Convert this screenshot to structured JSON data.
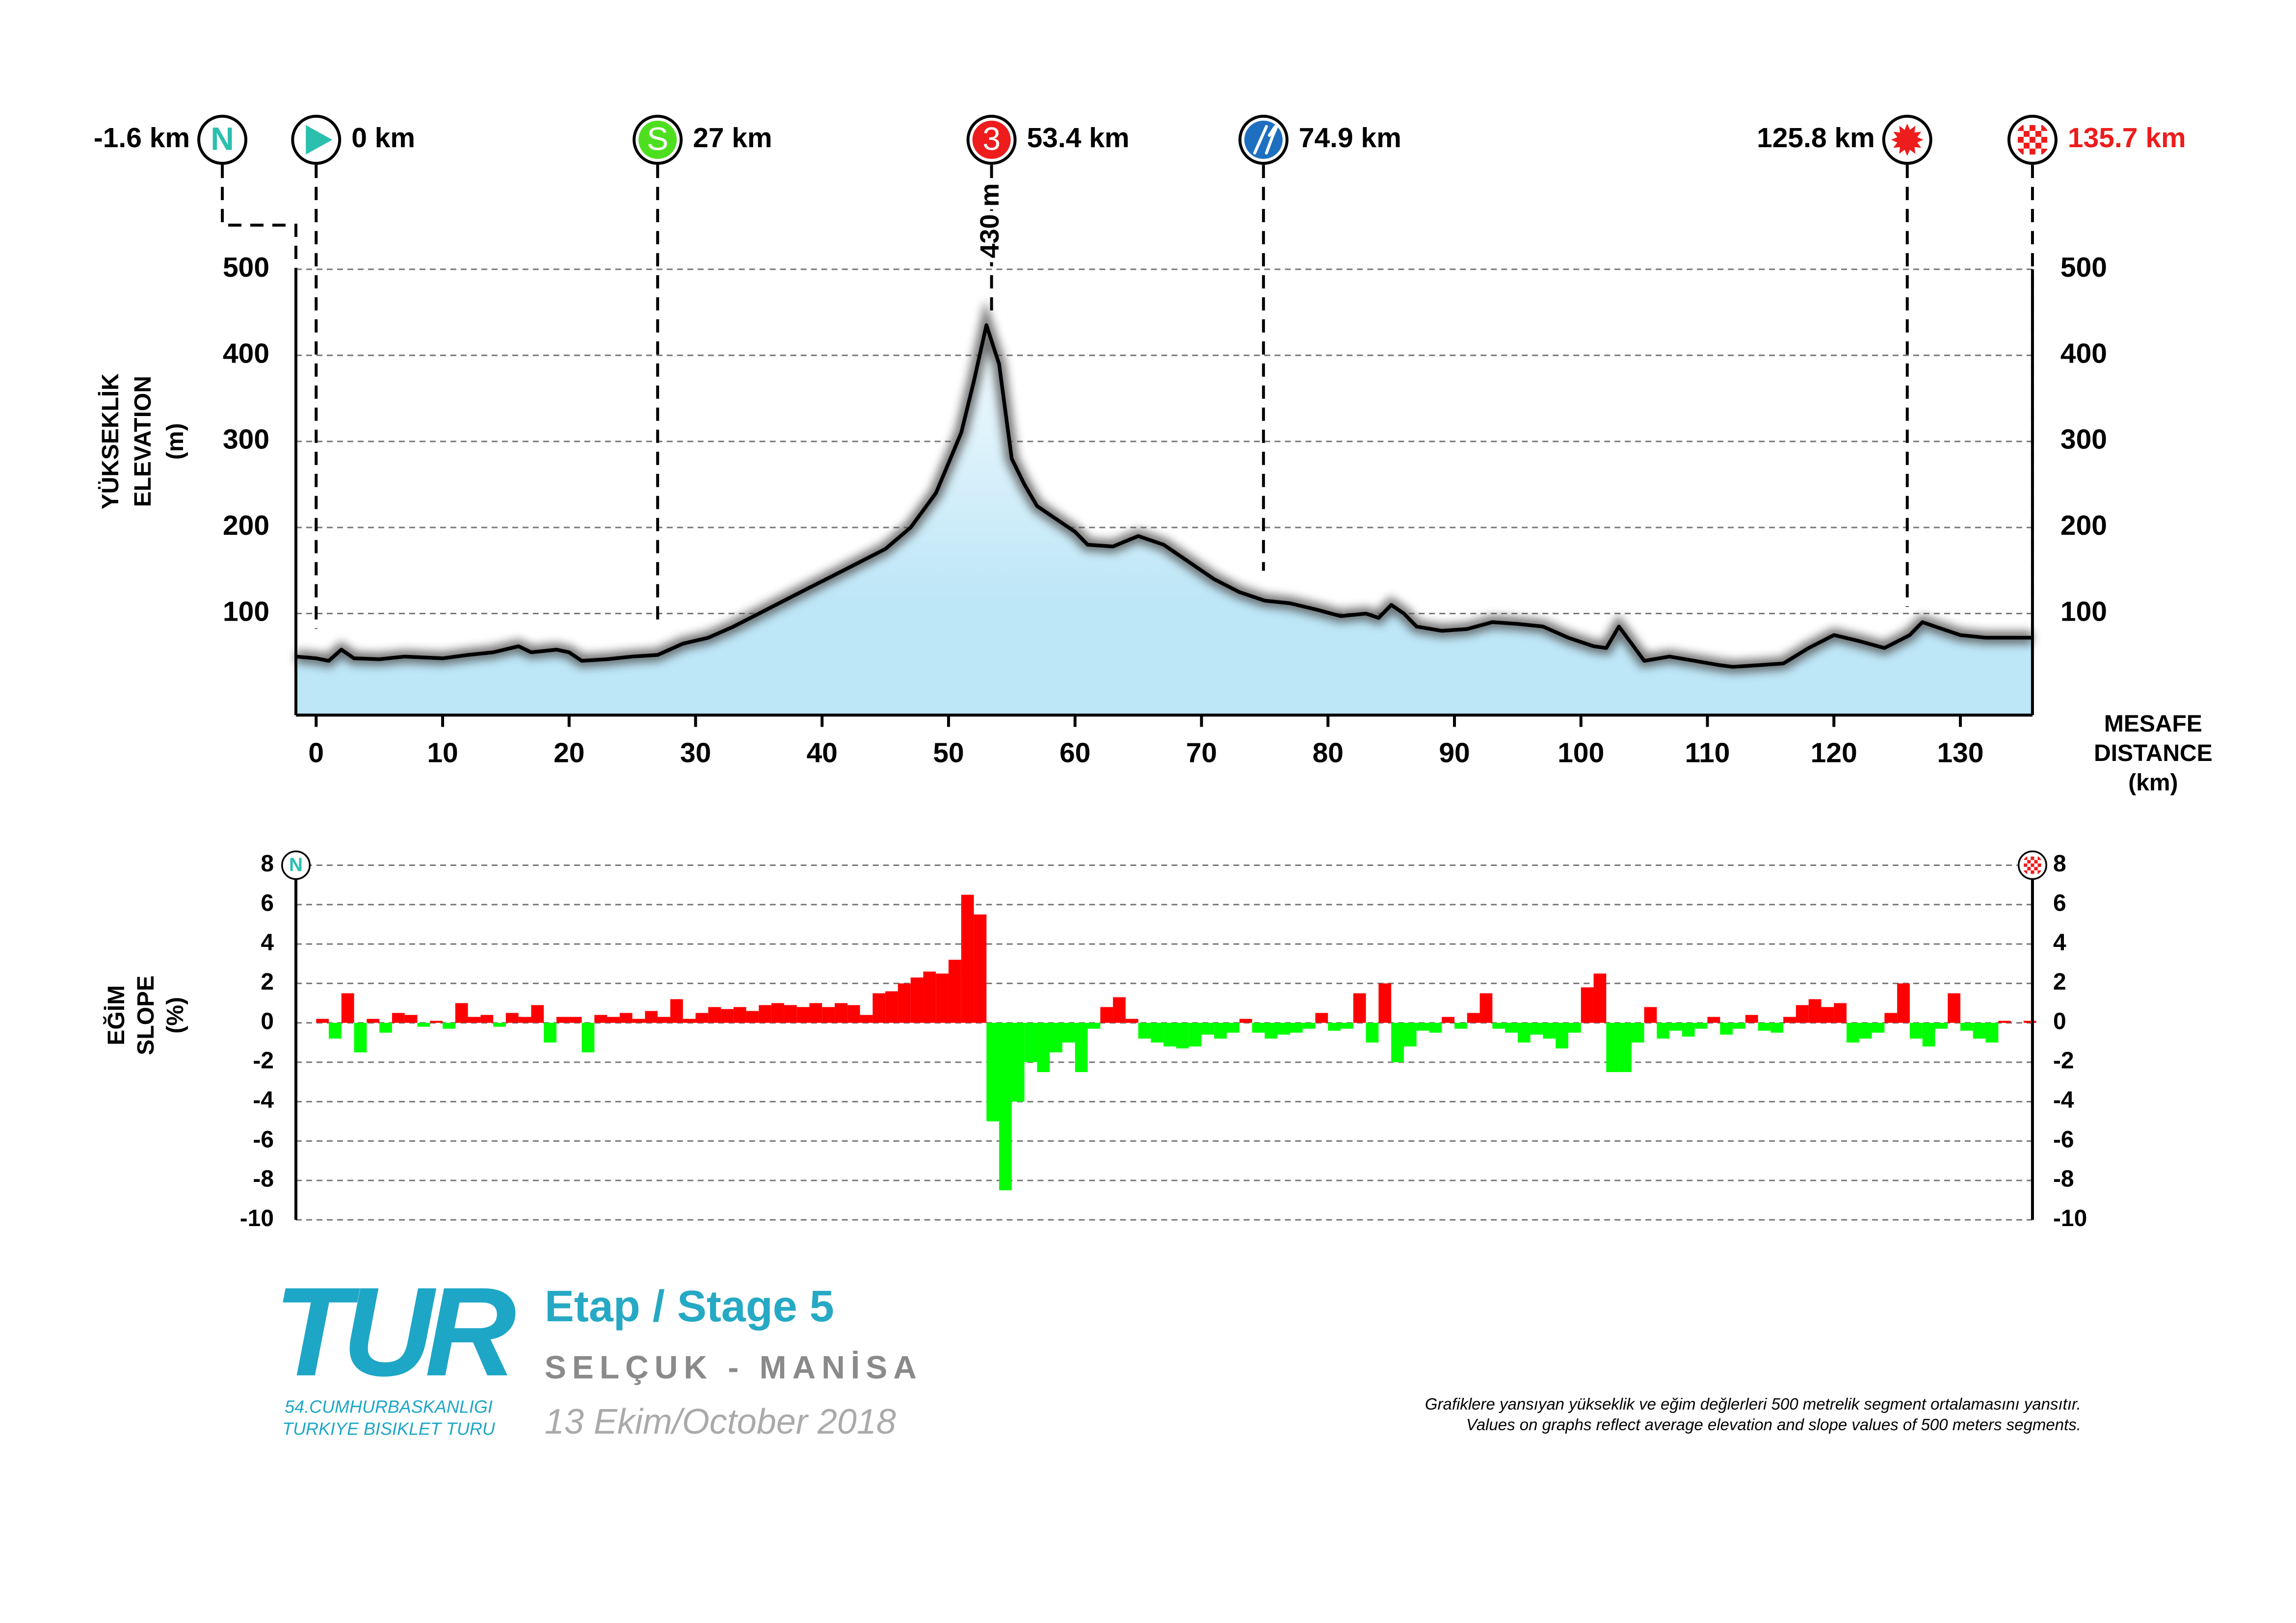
{
  "chart_data": [
    {
      "type": "area",
      "xlim": [
        -1.6,
        135.7
      ],
      "ylim": [
        -18,
        500
      ],
      "xticks": [
        0,
        10,
        20,
        30,
        40,
        50,
        60,
        70,
        80,
        90,
        100,
        110,
        120,
        130
      ],
      "yticks": [
        100,
        200,
        300,
        400,
        500
      ],
      "ylabel": [
        "YÜKSEKLİK",
        "ELEVATION",
        "(m)"
      ],
      "xlabel": [
        "MESAFE",
        "DISTANCE",
        "(km)"
      ],
      "color": "#bde6f7",
      "line_color": "#000000",
      "grid": true,
      "x": [
        -1.6,
        0,
        1,
        2,
        3,
        5,
        7,
        10,
        12,
        14,
        16,
        17,
        19,
        20,
        21,
        23,
        25,
        27,
        29,
        31,
        33,
        35,
        37,
        39,
        41,
        43,
        45,
        47,
        49,
        50,
        51,
        52,
        53,
        54,
        55,
        56,
        57,
        59,
        60,
        61,
        63,
        65,
        67,
        69,
        71,
        73,
        75,
        77,
        79,
        81,
        83,
        84,
        85,
        86,
        87,
        89,
        91,
        93,
        95,
        97,
        99,
        101,
        102,
        103,
        104,
        105,
        107,
        109,
        111,
        112,
        114,
        116,
        118,
        120,
        122,
        124,
        126,
        127,
        128,
        130,
        132,
        134,
        135.7
      ],
      "values": [
        50,
        48,
        45,
        58,
        48,
        47,
        50,
        48,
        52,
        55,
        62,
        55,
        58,
        55,
        45,
        47,
        50,
        52,
        65,
        72,
        85,
        100,
        115,
        130,
        145,
        160,
        175,
        200,
        240,
        275,
        310,
        370,
        435,
        390,
        280,
        250,
        225,
        205,
        195,
        180,
        178,
        190,
        180,
        160,
        140,
        125,
        115,
        112,
        105,
        97,
        100,
        95,
        110,
        100,
        85,
        80,
        82,
        90,
        88,
        85,
        72,
        62,
        60,
        85,
        65,
        45,
        50,
        45,
        40,
        38,
        40,
        42,
        60,
        75,
        68,
        60,
        75,
        90,
        85,
        75,
        72,
        72,
        72
      ],
      "markers": [
        {
          "value": -1.6,
          "label": "-1.6 km",
          "side": "left",
          "label_color": "#000000",
          "icon": "letter",
          "icon_text": "N",
          "icon_bg": "#ffffff",
          "icon_color": "#2bbfae"
        },
        {
          "value": 0,
          "label": "0 km",
          "side": "right",
          "label_color": "#000000",
          "icon": "play",
          "icon_bg": "#ffffff",
          "icon_color": "#2bbfae"
        },
        {
          "value": 27,
          "label": "27 km",
          "side": "right",
          "label_color": "#000000",
          "icon": "letter",
          "icon_text": "S",
          "icon_bg": "#4ddf1f",
          "icon_color": "#ffffff"
        },
        {
          "value": 53.4,
          "label": "53.4 km",
          "side": "right",
          "label_color": "#000000",
          "icon": "letter",
          "icon_text": "3",
          "icon_bg": "#ee1c1c",
          "icon_color": "#ffffff"
        },
        {
          "value": 74.9,
          "label": "74.9 km",
          "side": "right",
          "label_color": "#000000",
          "icon": "fork",
          "icon_bg": "#1f6fc0",
          "icon_color": "#ffffff"
        },
        {
          "value": 125.8,
          "label": "125.8 km",
          "side": "left",
          "label_color": "#000000",
          "icon": "star",
          "icon_bg": "#ffffff",
          "icon_color": "#ee1c1c"
        },
        {
          "value": 135.7,
          "label": "135.7 km",
          "side": "right",
          "label_color": "#ee1c1c",
          "icon": "flag",
          "icon_bg": "#ffffff",
          "icon_color": "#ee1c1c"
        }
      ],
      "annotations": [
        {
          "x": 53.4,
          "text": "430 m"
        }
      ]
    },
    {
      "type": "bar",
      "xlim": [
        -1.6,
        135.7
      ],
      "ylim": [
        -10,
        8
      ],
      "yticks": [
        -10,
        -8,
        -6,
        -4,
        -2,
        0,
        2,
        4,
        6,
        8
      ],
      "ylabel": [
        "EĞİM",
        "SLOPE",
        "(%)"
      ],
      "positive_color": "#ff0000",
      "negative_color": "#00ff00",
      "grid": true,
      "markers": [
        {
          "icon": "letter",
          "icon_text": "N",
          "icon_bg": "#ffffff",
          "icon_color": "#2bbfae"
        },
        {
          "icon": "flag",
          "icon_bg": "#ffffff",
          "icon_color": "#ee1c1c"
        }
      ],
      "x": [
        0,
        1,
        2,
        3,
        4,
        5,
        6,
        7,
        8,
        9,
        10,
        11,
        12,
        13,
        14,
        15,
        16,
        17,
        18,
        19,
        20,
        21,
        22,
        23,
        24,
        25,
        26,
        27,
        28,
        29,
        30,
        31,
        32,
        33,
        34,
        35,
        36,
        37,
        38,
        39,
        40,
        41,
        42,
        43,
        44,
        45,
        46,
        47,
        48,
        49,
        50,
        51,
        52,
        53,
        54,
        55,
        56,
        57,
        58,
        59,
        60,
        61,
        62,
        63,
        64,
        65,
        66,
        67,
        68,
        69,
        70,
        71,
        72,
        73,
        74,
        75,
        76,
        77,
        78,
        79,
        80,
        81,
        82,
        83,
        84,
        85,
        86,
        87,
        88,
        89,
        90,
        91,
        92,
        93,
        94,
        95,
        96,
        97,
        98,
        99,
        100,
        101,
        102,
        103,
        104,
        105,
        106,
        107,
        108,
        109,
        110,
        111,
        112,
        113,
        114,
        115,
        116,
        117,
        118,
        119,
        120,
        121,
        122,
        123,
        124,
        125,
        126,
        127,
        128,
        129,
        130,
        131,
        132,
        133,
        134,
        135
      ],
      "values": [
        0.2,
        -0.8,
        1.5,
        -1.5,
        0.2,
        -0.5,
        0.5,
        0.4,
        -0.2,
        0.1,
        -0.3,
        1.0,
        0.3,
        0.4,
        -0.2,
        0.5,
        0.3,
        0.9,
        -1.0,
        0.3,
        0.3,
        -1.5,
        0.4,
        0.3,
        0.5,
        0.2,
        0.6,
        0.3,
        1.2,
        0.2,
        0.5,
        0.8,
        0.7,
        0.8,
        0.6,
        0.9,
        1.0,
        0.9,
        0.8,
        1.0,
        0.8,
        1.0,
        0.9,
        0.4,
        1.5,
        1.6,
        2.0,
        2.3,
        2.6,
        2.5,
        3.2,
        6.5,
        5.5,
        -5.0,
        -8.5,
        -4.0,
        -2.0,
        -2.5,
        -1.5,
        -1.0,
        -2.5,
        -0.3,
        0.8,
        1.3,
        0.2,
        -0.8,
        -1.0,
        -1.2,
        -1.3,
        -1.2,
        -0.6,
        -0.8,
        -0.5,
        0.2,
        -0.5,
        -0.8,
        -0.6,
        -0.5,
        -0.3,
        0.5,
        -0.4,
        -0.3,
        1.5,
        -1.0,
        2.0,
        -2.0,
        -1.2,
        -0.4,
        -0.5,
        0.3,
        -0.3,
        0.5,
        1.5,
        -0.3,
        -0.5,
        -1.0,
        -0.6,
        -0.8,
        -1.3,
        -0.5,
        1.8,
        2.5,
        -2.5,
        -2.5,
        -1.0,
        0.8,
        -0.8,
        -0.4,
        -0.7,
        -0.3,
        0.3,
        -0.6,
        -0.3,
        0.4,
        -0.4,
        -0.5,
        0.3,
        0.9,
        1.2,
        0.8,
        1.0,
        -1.0,
        -0.8,
        -0.5,
        0.5,
        2.0,
        -0.8,
        -1.2,
        -0.3,
        1.5,
        -0.4,
        -0.8,
        -1.0,
        0.1,
        0.0,
        0.1
      ]
    }
  ],
  "footer": {
    "logo": "TUR",
    "logo_sub": [
      "54.CUMHURBASKANLIGI",
      "TURKIYE BISIKLET TURU"
    ],
    "stage": "Etap / Stage 5",
    "route": "SELÇUK - MANİSA",
    "date": "13 Ekim/October 2018",
    "notes": [
      "Grafiklere yansıyan yükseklik ve eğim değlerleri 500 metrelik segment ortalamasını yansıtır.",
      "Values on graphs reflect average elevation and slope values of 500 meters segments."
    ]
  }
}
